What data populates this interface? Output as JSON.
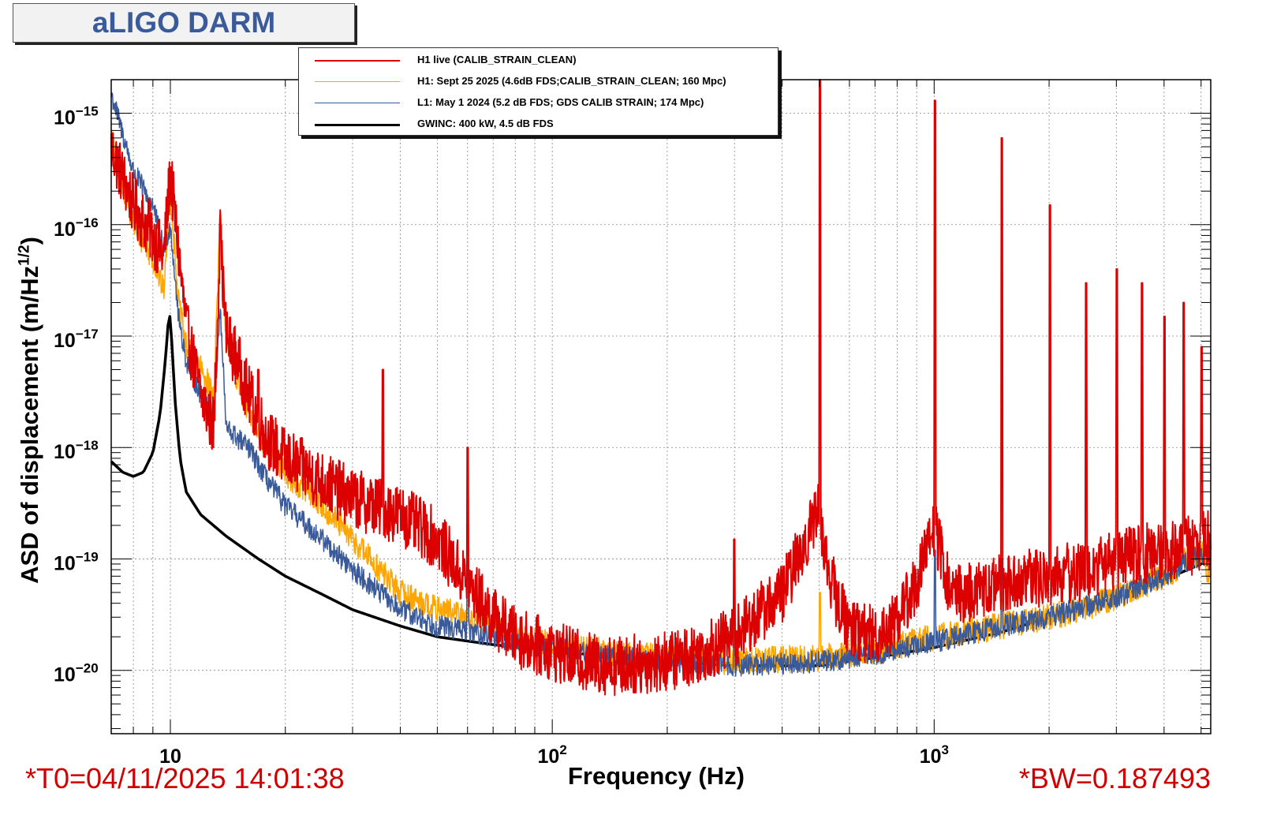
{
  "chart_data": {
    "type": "line",
    "title": "aLIGO DARM",
    "xlabel": "Frequency (Hz)",
    "ylabel": "ASD of displacement (m/Hz",
    "ylabel_sup": "1/2",
    "ylabel_close": ")",
    "xscale": "log",
    "yscale": "log",
    "xlim": [
      7,
      5300
    ],
    "ylim": [
      2.7e-21,
      2e-15
    ],
    "grid": true,
    "legend_position": "top-center",
    "x_ticks": [
      {
        "value": 10,
        "label": "10"
      },
      {
        "value": 100,
        "label": "10",
        "exp": "2"
      },
      {
        "value": 1000,
        "label": "10",
        "exp": "3"
      }
    ],
    "y_ticks": [
      {
        "value": 1e-20,
        "label": "10",
        "exp": "−20"
      },
      {
        "value": 1e-19,
        "label": "10",
        "exp": "−19"
      },
      {
        "value": 1e-18,
        "label": "10",
        "exp": "−18"
      },
      {
        "value": 1e-17,
        "label": "10",
        "exp": "−17"
      },
      {
        "value": 1e-16,
        "label": "10",
        "exp": "−16"
      },
      {
        "value": 1e-15,
        "label": "10",
        "exp": "−15"
      }
    ],
    "series": [
      {
        "name": "H1 live (CALIB_STRAIN_CLEAN)",
        "color": "#dd0000",
        "width": 2,
        "noise": 0.55,
        "x": [
          7,
          8,
          9,
          9.6,
          10,
          10.4,
          11,
          12,
          13,
          13.5,
          14,
          15,
          16,
          18,
          20,
          25,
          30,
          40,
          50,
          60,
          70,
          80,
          100,
          120,
          150,
          200,
          250,
          300,
          400,
          450,
          500,
          520,
          560,
          600,
          700,
          800,
          900,
          1000,
          1100,
          1300,
          1500,
          2000,
          2500,
          3000,
          4000,
          5000,
          5300
        ],
        "y": [
          5e-16,
          1.5e-16,
          8e-17,
          5e-17,
          3e-16,
          8e-17,
          1.2e-17,
          3e-18,
          1.5e-18,
          8e-17,
          1e-17,
          6e-18,
          3e-18,
          1.2e-18,
          8e-19,
          5e-19,
          3.5e-19,
          2.5e-19,
          1.5e-19,
          6e-20,
          3e-20,
          2e-20,
          1.5e-20,
          1.2e-20,
          1.1e-20,
          1.2e-20,
          1.5e-20,
          2e-20,
          5e-20,
          1.2e-19,
          3e-19,
          1e-19,
          4e-20,
          2.5e-20,
          2e-20,
          3e-20,
          6e-20,
          2e-19,
          5e-20,
          5e-20,
          6e-20,
          7e-20,
          8e-20,
          1e-19,
          1.2e-19,
          1.4e-19,
          1.5e-19
        ],
        "peaks": [
          {
            "f": 13.5,
            "a": 1e-16
          },
          {
            "f": 17,
            "a": 5e-18
          },
          {
            "f": 36,
            "a": 5e-18
          },
          {
            "f": 60,
            "a": 1e-18
          },
          {
            "f": 300,
            "a": 1.5e-19
          },
          {
            "f": 502,
            "a": 2e-15
          },
          {
            "f": 1004,
            "a": 1.3e-15
          },
          {
            "f": 1505,
            "a": 6e-16
          },
          {
            "f": 2008,
            "a": 1.5e-16
          },
          {
            "f": 2500,
            "a": 3e-17
          },
          {
            "f": 3010,
            "a": 4e-17
          },
          {
            "f": 3500,
            "a": 3e-17
          },
          {
            "f": 4015,
            "a": 1.5e-17
          },
          {
            "f": 4500,
            "a": 2e-17
          },
          {
            "f": 5020,
            "a": 8e-18
          }
        ]
      },
      {
        "name": "H1: Sept 25 2025 (4.6dB FDS;CALIB_STRAIN_CLEAN; 160 Mpc)",
        "color": "#ffa500",
        "width": 1.5,
        "noise": 0.25,
        "x": [
          7,
          8,
          9,
          9.6,
          10,
          10.5,
          11,
          12,
          13,
          13.5,
          14,
          15,
          16,
          18,
          20,
          25,
          30,
          40,
          50,
          60,
          70,
          80,
          100,
          150,
          200,
          300,
          500,
          700,
          1000,
          1500,
          2000,
          3000,
          4000,
          5000,
          5300
        ],
        "y": [
          6e-16,
          1e-16,
          5e-17,
          2.5e-17,
          2e-16,
          2e-17,
          8e-18,
          5e-18,
          3e-18,
          1.2e-16,
          1e-17,
          4e-18,
          2e-18,
          1e-18,
          6e-19,
          3e-19,
          1.5e-19,
          5e-20,
          3.5e-20,
          3e-20,
          2.5e-20,
          2e-20,
          1.7e-20,
          1.4e-20,
          1.3e-20,
          1.2e-20,
          1.3e-20,
          1.5e-20,
          2e-20,
          2.5e-20,
          3e-20,
          4.5e-20,
          7e-20,
          1.2e-19,
          6e-20
        ],
        "peaks": [
          {
            "f": 60,
            "a": 2e-19
          },
          {
            "f": 502,
            "a": 5e-20
          },
          {
            "f": 1004,
            "a": 1e-19
          },
          {
            "f": 1505,
            "a": 5e-20
          }
        ]
      },
      {
        "name": "L1: May 1 2024 (5.2 dB FDS; GDS CALIB STRAIN; 174 Mpc)",
        "color": "#3a5a9a",
        "width": 1.5,
        "noise": 0.2,
        "x": [
          7,
          8,
          9,
          9.6,
          10,
          10.5,
          11,
          12,
          13,
          13.5,
          14,
          15,
          16,
          18,
          20,
          25,
          30,
          40,
          50,
          60,
          70,
          80,
          100,
          150,
          200,
          300,
          500,
          700,
          1000,
          1500,
          2000,
          3000,
          4000,
          5000,
          5300
        ],
        "y": [
          1.5e-15,
          3e-16,
          1.5e-16,
          6e-17,
          1e-16,
          1.5e-17,
          6e-18,
          3e-18,
          2e-18,
          1.8e-17,
          1.5e-18,
          1.2e-18,
          1e-18,
          5e-19,
          3e-19,
          1.5e-19,
          8e-20,
          3.5e-20,
          2.5e-20,
          2.3e-20,
          2e-20,
          1.8e-20,
          1.6e-20,
          1.3e-20,
          1.2e-20,
          1.1e-20,
          1.2e-20,
          1.4e-20,
          1.8e-20,
          2.5e-20,
          3e-20,
          4.5e-20,
          7e-20,
          1.1e-19,
          1.1e-19
        ],
        "peaks": [
          {
            "f": 60,
            "a": 1e-19
          },
          {
            "f": 300,
            "a": 8e-20
          },
          {
            "f": 1004,
            "a": 1.2e-19
          },
          {
            "f": 1505,
            "a": 1e-19
          }
        ]
      },
      {
        "name": "GWINC: 400 kW, 4.5 dB FDS",
        "color": "#000000",
        "width": 3.5,
        "noise": 0,
        "x": [
          7,
          7.5,
          8,
          8.5,
          9,
          9.4,
          9.7,
          9.9,
          10,
          10.1,
          10.3,
          10.6,
          11,
          12,
          14,
          17,
          20,
          25,
          30,
          40,
          50,
          70,
          100,
          150,
          200,
          300,
          500,
          700,
          1000,
          1500,
          2000,
          3000,
          4000,
          5000,
          5300
        ],
        "y": [
          7.5e-19,
          6e-19,
          5.5e-19,
          6e-19,
          9e-19,
          2e-18,
          6e-18,
          1.5e-17,
          1.5e-17,
          8e-18,
          2.5e-18,
          8e-19,
          4e-19,
          2.5e-19,
          1.6e-19,
          1e-19,
          7e-20,
          4.8e-20,
          3.5e-20,
          2.5e-20,
          2e-20,
          1.7e-20,
          1.5e-20,
          1.3e-20,
          1.2e-20,
          1.1e-20,
          1.1e-20,
          1.3e-20,
          1.6e-20,
          2.2e-20,
          3e-20,
          4.5e-20,
          6.5e-20,
          9e-20,
          1e-19
        ],
        "peaks": []
      }
    ],
    "annotations": {
      "t0": "*T0=04/11/2025 14:01:38",
      "bw": "*BW=0.187493"
    }
  }
}
